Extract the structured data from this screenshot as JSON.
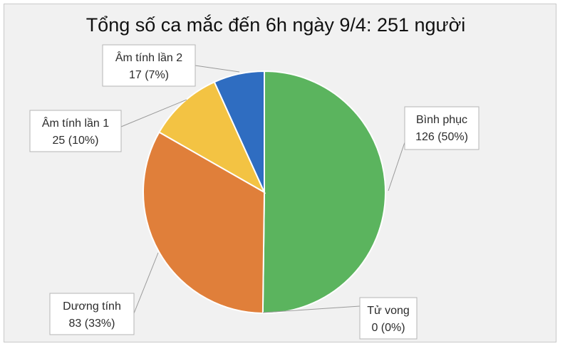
{
  "chart_data": {
    "type": "pie",
    "title": "Tổng số ca mắc đến 6h ngày 9/4: 251 người",
    "slices": [
      {
        "name": "Bình phục",
        "value": 126,
        "label_value": "126 (50%)",
        "color": "#5bb45e"
      },
      {
        "name": "Tử vong",
        "value": 0,
        "label_value": "0 (0%)",
        "color": "#8c8c8c"
      },
      {
        "name": "Dương tính",
        "value": 83,
        "label_value": "83 (33%)",
        "color": "#e07f3a"
      },
      {
        "name": "Âm tính lần 1",
        "value": 25,
        "label_value": "25 (10%)",
        "color": "#f3c343"
      },
      {
        "name": "Âm tính lần 2",
        "value": 17,
        "label_value": "17 (7%)",
        "color": "#2f6dc1"
      }
    ]
  }
}
